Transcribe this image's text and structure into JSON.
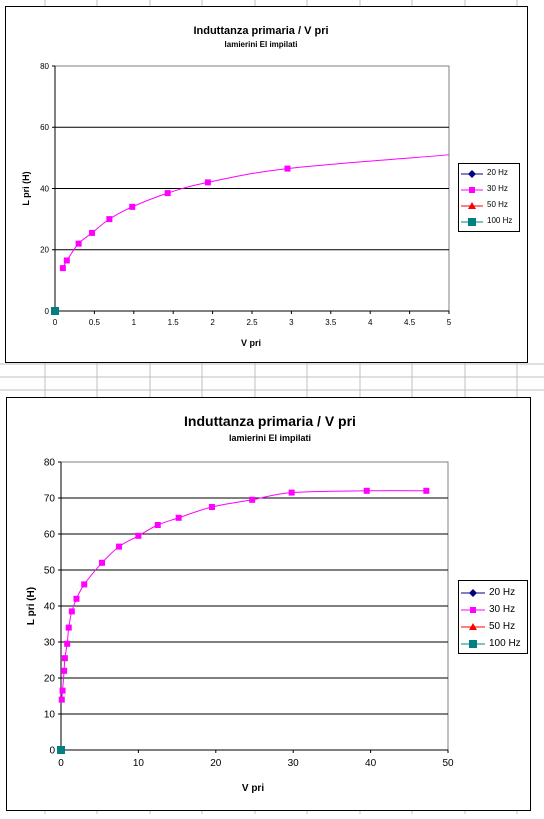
{
  "sheet": {
    "grid_color": "#c0c0c0"
  },
  "charts": [
    {
      "title": "Induttanza primaria / V pri",
      "subtitle": "lamierini EI impilati",
      "xlabel": "V pri",
      "ylabel": "L pri (H)",
      "legend": [
        "20 Hz",
        "30 Hz",
        "50 Hz",
        "100 Hz"
      ]
    },
    {
      "title": "Induttanza primaria / V pri",
      "subtitle": "lamierini EI impilati",
      "xlabel": "V pri",
      "ylabel": "L pri (H)",
      "legend": [
        "20 Hz",
        "30 Hz",
        "50 Hz",
        "100 Hz"
      ]
    }
  ],
  "chart_data": [
    {
      "type": "scatter",
      "title": "Induttanza primaria / V pri",
      "subtitle": "lamierini EI impilati",
      "xlabel": "V pri",
      "ylabel": "L pri (H)",
      "xlim": [
        0,
        5
      ],
      "ylim": [
        0,
        80
      ],
      "x_ticks": [
        "0",
        "0.5",
        "1",
        "1.5",
        "2",
        "2.5",
        "3",
        "3.5",
        "4",
        "4.5",
        "5"
      ],
      "y_ticks": [
        "0",
        "20",
        "40",
        "60",
        "80"
      ],
      "grid": "horizontal",
      "legend_position": "right",
      "series": [
        {
          "name": "20 Hz",
          "color": "#000080",
          "marker": "diamond",
          "points": []
        },
        {
          "name": "30 Hz",
          "color": "#ff00ff",
          "marker": "square",
          "line": true,
          "points": [
            [
              0.1,
              14
            ],
            [
              0.15,
              16.5
            ],
            [
              0.3,
              22
            ],
            [
              0.47,
              25.5
            ],
            [
              0.69,
              30
            ],
            [
              0.98,
              34
            ],
            [
              1.43,
              38.5
            ],
            [
              1.94,
              42
            ],
            [
              2.95,
              46.5
            ],
            [
              5.0,
              51
            ]
          ]
        },
        {
          "name": "50 Hz",
          "color": "#ff0000",
          "marker": "triangle",
          "points": []
        },
        {
          "name": "100 Hz",
          "color": "#008080",
          "marker": "square",
          "points": [
            [
              0,
              0
            ]
          ]
        }
      ]
    },
    {
      "type": "scatter",
      "title": "Induttanza primaria / V pri",
      "subtitle": "lamierini EI impilati",
      "xlabel": "V pri",
      "ylabel": "L pri (H)",
      "xlim": [
        0,
        50
      ],
      "ylim": [
        0,
        80
      ],
      "x_ticks": [
        "0",
        "10",
        "20",
        "30",
        "40",
        "50"
      ],
      "y_ticks": [
        "0",
        "10",
        "20",
        "30",
        "40",
        "50",
        "60",
        "70",
        "80"
      ],
      "grid": "horizontal",
      "legend_position": "right",
      "series": [
        {
          "name": "20 Hz",
          "color": "#000080",
          "marker": "diamond",
          "points": []
        },
        {
          "name": "30 Hz",
          "color": "#ff00ff",
          "marker": "square",
          "line": true,
          "points": [
            [
              0.1,
              14
            ],
            [
              0.2,
              16.5
            ],
            [
              0.4,
              22
            ],
            [
              0.5,
              25.5
            ],
            [
              0.8,
              29.5
            ],
            [
              1.0,
              34
            ],
            [
              1.4,
              38.5
            ],
            [
              2.0,
              42
            ],
            [
              3.0,
              46
            ],
            [
              5.3,
              52
            ],
            [
              7.5,
              56.5
            ],
            [
              10.0,
              59.5
            ],
            [
              12.5,
              62.5
            ],
            [
              15.2,
              64.5
            ],
            [
              19.5,
              67.5
            ],
            [
              24.7,
              69.5
            ],
            [
              29.8,
              71.5
            ],
            [
              39.5,
              72
            ],
            [
              47.2,
              72
            ]
          ]
        },
        {
          "name": "50 Hz",
          "color": "#ff0000",
          "marker": "triangle",
          "points": []
        },
        {
          "name": "100 Hz",
          "color": "#008080",
          "marker": "square",
          "points": [
            [
              0,
              0
            ]
          ]
        }
      ]
    }
  ]
}
